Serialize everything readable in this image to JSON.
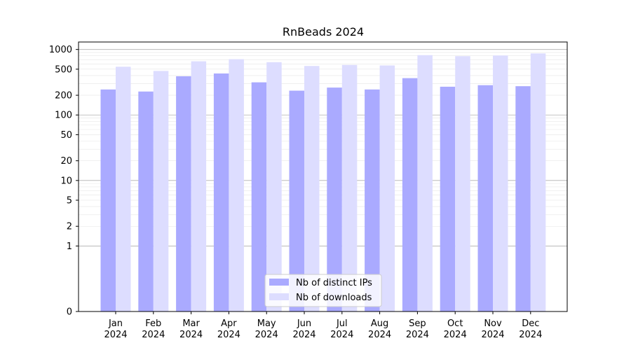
{
  "chart_data": {
    "type": "bar",
    "title": "RnBeads 2024",
    "xlabel": "",
    "ylabel": "",
    "yscale": "symlog",
    "ylim": [
      0,
      1300
    ],
    "yticks": [
      0,
      1,
      2,
      5,
      10,
      20,
      50,
      100,
      200,
      500,
      1000
    ],
    "ytick_labels": [
      "0",
      "1",
      "2",
      "5",
      "10",
      "20",
      "50",
      "100",
      "200",
      "500",
      "1000"
    ],
    "grid": "horizontal",
    "legend_position": "bottom-center",
    "categories": [
      [
        "Jan",
        "2024"
      ],
      [
        "Feb",
        "2024"
      ],
      [
        "Mar",
        "2024"
      ],
      [
        "Apr",
        "2024"
      ],
      [
        "May",
        "2024"
      ],
      [
        "Jun",
        "2024"
      ],
      [
        "Jul",
        "2024"
      ],
      [
        "Aug",
        "2024"
      ],
      [
        "Sep",
        "2024"
      ],
      [
        "Oct",
        "2024"
      ],
      [
        "Nov",
        "2024"
      ],
      [
        "Dec",
        "2024"
      ]
    ],
    "series": [
      {
        "name": "Nb of distinct IPs",
        "color": "#aaaaff",
        "values": [
          245,
          228,
          390,
          430,
          315,
          235,
          262,
          245,
          365,
          270,
          285,
          275
        ]
      },
      {
        "name": "Nb of downloads",
        "color": "#ddddff",
        "values": [
          545,
          470,
          660,
          710,
          640,
          560,
          580,
          570,
          820,
          790,
          810,
          870
        ]
      }
    ]
  }
}
